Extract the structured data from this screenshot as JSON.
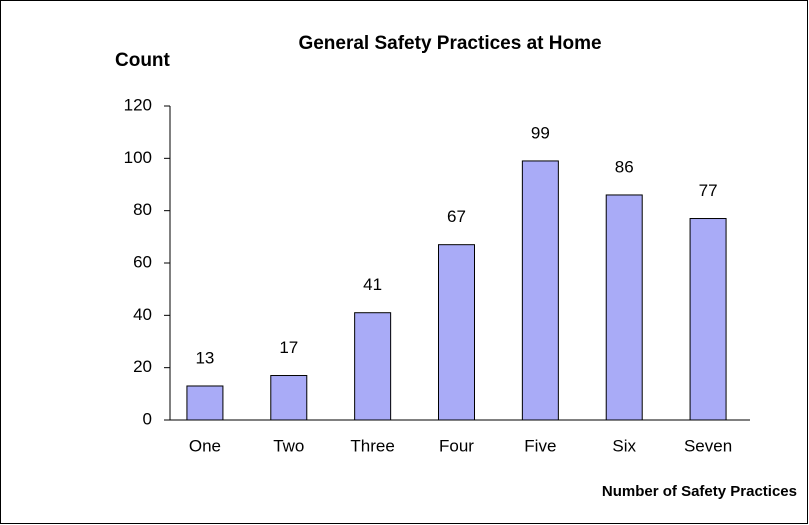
{
  "chart_data": {
    "type": "bar",
    "title": "General Safety Practices at Home",
    "y_label": "Count",
    "x_label": "Number of Safety Practices",
    "categories": [
      "One",
      "Two",
      "Three",
      "Four",
      "Five",
      "Six",
      "Seven"
    ],
    "values": [
      13,
      17,
      41,
      67,
      99,
      86,
      77
    ],
    "color": "#a9abf7",
    "ylim": [
      0,
      120
    ],
    "yticks": [
      0,
      20,
      40,
      60,
      80,
      100,
      120
    ],
    "grid": false
  }
}
